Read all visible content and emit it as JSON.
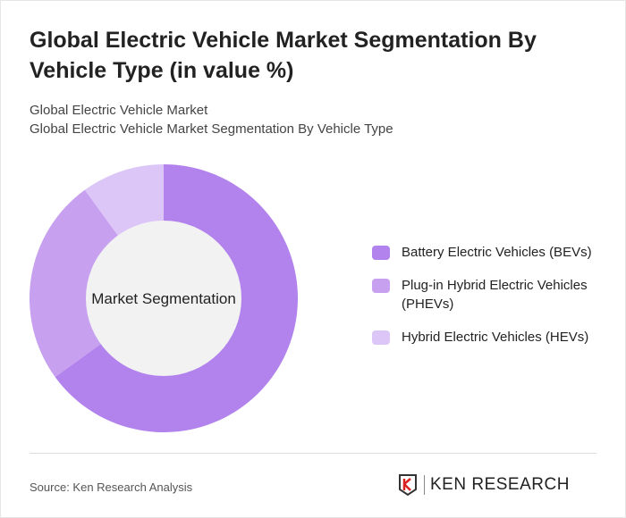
{
  "title": "Global Electric Vehicle Market Segmentation By Vehicle Type (in value %)",
  "subtitle_1": "Global Electric Vehicle Market",
  "subtitle_2": "Global Electric Vehicle Market Segmentation By Vehicle Type",
  "source": "Source: Ken Research Analysis",
  "logo_text": "KEN RESEARCH",
  "chart_data": {
    "type": "pie",
    "variant": "donut",
    "center_label": "Market Segmentation",
    "categories": [
      "Battery Electric Vehicles (BEVs)",
      "Plug-in Hybrid Electric Vehicles (PHEVs)",
      "Hybrid Electric Vehicles (HEVs)"
    ],
    "values": [
      65,
      25,
      10
    ],
    "colors": [
      "#b283ec",
      "#c7a0f0",
      "#dcc6f7"
    ],
    "center_color": "#f2f2f2",
    "legend_position": "right"
  }
}
